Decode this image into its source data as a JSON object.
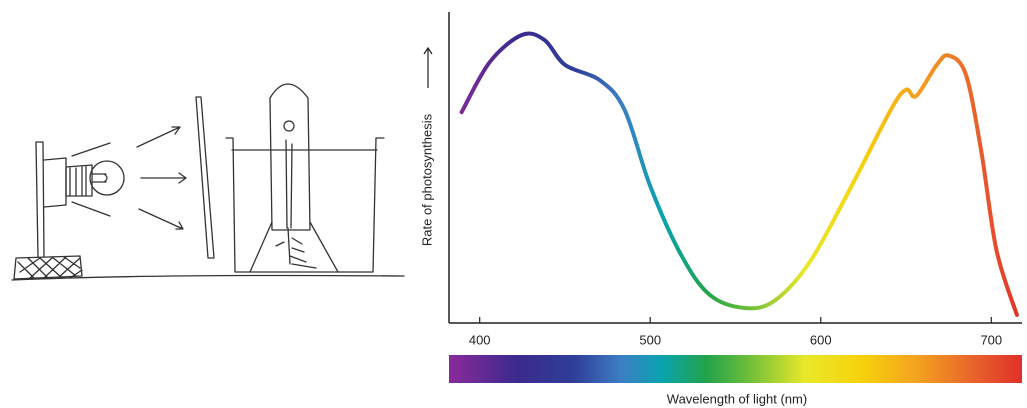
{
  "chart_data": {
    "type": "line",
    "x_label": "Wavelength of light (nm)",
    "y_label": "Rate of photosynthesis",
    "x": [
      389.4,
      405.9,
      424.7,
      438,
      450,
      470.6,
      485,
      500,
      518,
      535,
      556,
      573.5,
      594,
      618,
      641,
      650,
      656,
      668,
      675,
      685,
      694,
      703,
      715
    ],
    "series": [
      {
        "values": [
          67.8,
          83.9,
          92.6,
          91,
          83,
          78,
          68.5,
          44,
          22,
          9,
          4.8,
          7.4,
          20,
          44,
          68.5,
          75,
          73,
          83,
          86,
          80,
          55.6,
          23.5,
          2.6
        ]
      }
    ],
    "xlim": [
      382,
      718
    ],
    "xticks": [
      400,
      500,
      600,
      700
    ],
    "ylim": [
      0,
      100
    ]
  }
}
